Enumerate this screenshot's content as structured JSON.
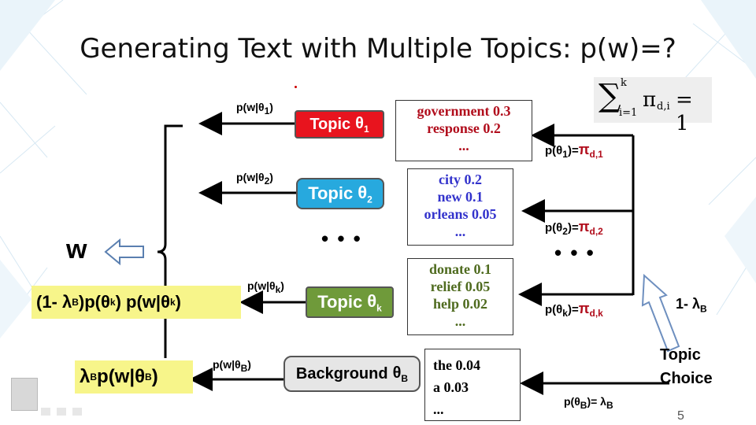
{
  "slide": {
    "title": "Generating Text with Multiple Topics: p(w)=?",
    "page_number": "5"
  },
  "formula": {
    "sum_upper": "k",
    "sum_lower": "i=1",
    "body": "π",
    "body_sub": "d,i",
    "equals": "= 1"
  },
  "topics": [
    {
      "label": "Topic",
      "symbol": "θ",
      "sub": "1",
      "color": "#e8141e",
      "edge": "p(w|θ",
      "edge_sub": "1",
      "edge_close": ")"
    },
    {
      "label": "Topic",
      "symbol": "θ",
      "sub": "2",
      "color": "#27a9de",
      "edge": "p(w|θ",
      "edge_sub": "2",
      "edge_close": ")"
    },
    {
      "label": "Topic",
      "symbol": "θ",
      "sub": "k",
      "color": "#6f9a3a",
      "edge": "p(w|θ",
      "edge_sub": "k",
      "edge_close": ")"
    },
    {
      "label": "Background",
      "symbol": "θ",
      "sub": "B",
      "color": "#e6e6e6",
      "edge": "p(w|θ",
      "edge_sub": "B",
      "edge_close": ")"
    }
  ],
  "distributions": [
    {
      "color": "#b10d1c",
      "lines": [
        "government 0.3",
        "response  0.2",
        "..."
      ]
    },
    {
      "color": "#3333cc",
      "lines": [
        "city 0.2",
        "new   0.1",
        "orleans 0.05",
        "..."
      ]
    },
    {
      "color": "#4f6b1f",
      "lines": [
        "donate  0.1",
        "relief 0.05",
        "help 0.02",
        "..."
      ]
    },
    {
      "color": "#000000",
      "lines": [
        "the  0.04",
        "a 0.03",
        "..."
      ]
    }
  ],
  "priors": [
    {
      "left": "p(θ",
      "sub": "1",
      "mid": ")=",
      "pi": "π",
      "pi_sub": "d,1"
    },
    {
      "left": "p(θ",
      "sub": "2",
      "mid": ")=",
      "pi": "π",
      "pi_sub": "d,2"
    },
    {
      "left": "p(θ",
      "sub": "k",
      "mid": ")=",
      "pi": "π",
      "pi_sub": "d,k"
    },
    {
      "left": "p(θ",
      "sub": "B",
      "mid": ")= λ",
      "pi": "",
      "pi_sub": "B"
    }
  ],
  "ellipsis": "• • •",
  "w_label": "w",
  "one_minus": {
    "text": "1- λ",
    "sub": "B"
  },
  "topic_choice": [
    "Topic",
    "Choice"
  ],
  "highlight_k": {
    "a": "(1- λ",
    "a_sub": "B",
    "b": ")p(θ",
    "b_sub": "k",
    "c": ") p(w|θ",
    "c_sub": "k",
    "d": ")"
  },
  "highlight_b": {
    "a": "λ",
    "a_sub": "B",
    "b": " p(w|θ",
    "b_sub": "B",
    "c": ")"
  }
}
